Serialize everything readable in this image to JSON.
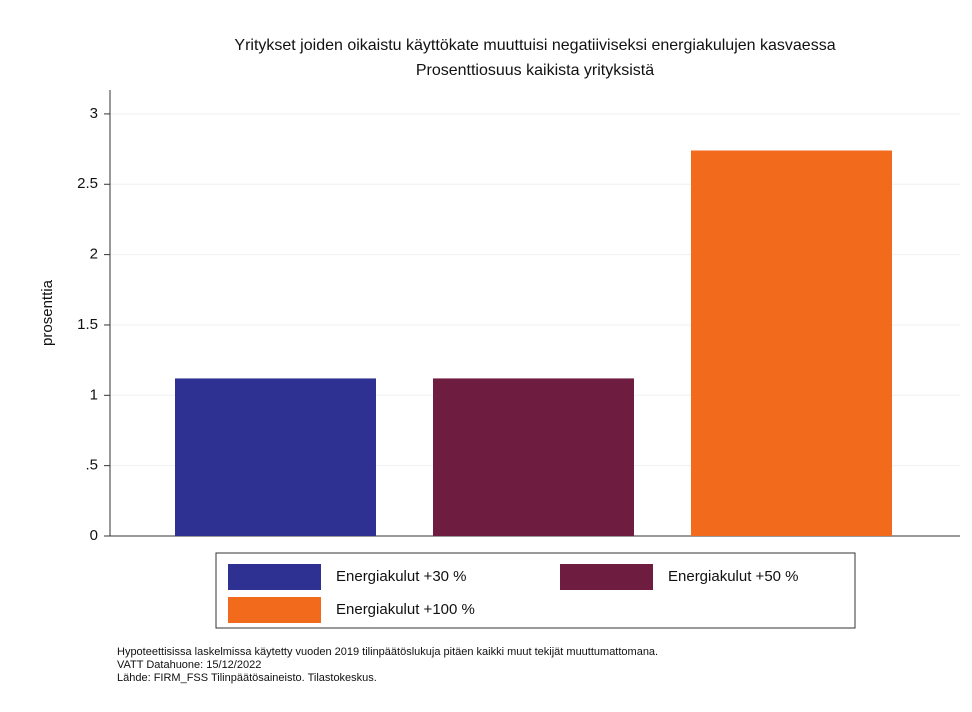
{
  "chart_data": {
    "type": "bar",
    "title": "Yritykset joiden oikaistu käyttökate muuttuisi negatiiviseksi energiakulujen kasvaessa",
    "subtitle": "Prosenttiosuus kaikista yrityksistä",
    "y_label": "prosenttia",
    "series": [
      {
        "name": "Energiakulut +30 %",
        "color": "#2e3192",
        "values": [
          1.12
        ]
      },
      {
        "name": "Energiakulut +50 %",
        "color": "#6e1c3f",
        "values": [
          1.12
        ]
      },
      {
        "name": "Energiakulut +100 %",
        "color": "#f26b1d",
        "values": [
          2.74
        ]
      }
    ],
    "ylim": [
      0,
      3.17
    ],
    "yticks": [
      0,
      {
        "value": 0.5,
        "label": ".5"
      },
      1,
      1.5,
      2,
      2.5,
      3
    ],
    "grid": true,
    "legend": "bottom",
    "notes": [
      "Hypoteettisissa laskelmissa käytetty vuoden 2019 tilinpäätöslukuja pitäen kaikki muut tekijät muuttumattomana.",
      "VATT Datahuone: 15/12/2022",
      "Lähde: FIRM_FSS Tilinpäätösaineisto. Tilastokeskus."
    ]
  }
}
